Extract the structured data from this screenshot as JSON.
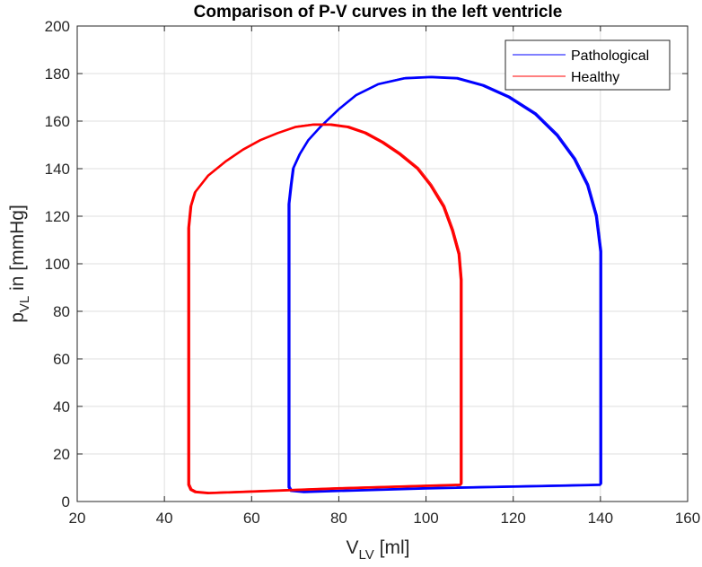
{
  "chart_data": {
    "type": "line",
    "title": "Comparison of P-V curves in the left ventricle",
    "xlabel": {
      "main": "V",
      "sub": "LV",
      "unit": " [ml]"
    },
    "ylabel": {
      "main": "p",
      "sub": "VL",
      "unit": " in [mmHg]"
    },
    "xlim": [
      20,
      160
    ],
    "ylim": [
      0,
      200
    ],
    "xticks": [
      20,
      40,
      60,
      80,
      100,
      120,
      140,
      160
    ],
    "yticks": [
      0,
      20,
      40,
      60,
      80,
      100,
      120,
      140,
      160,
      180,
      200
    ],
    "grid": true,
    "legend_position": "top-right",
    "series": [
      {
        "name": "Pathological",
        "color": "#0000ff",
        "x": [
          140,
          140,
          140,
          139,
          137,
          134,
          130,
          125,
          119,
          113,
          107,
          101,
          95,
          89,
          84,
          80,
          76,
          73,
          71,
          69.5,
          69,
          68.5,
          68.5,
          68.5,
          68.5,
          68.5,
          69,
          72,
          100,
          140
        ],
        "y": [
          7,
          60,
          105,
          120,
          133,
          144,
          154,
          163,
          170,
          175,
          178,
          178.5,
          178,
          175.5,
          171,
          165,
          158,
          152,
          146,
          140,
          133,
          125,
          100,
          60,
          20,
          6,
          4.5,
          4,
          5.5,
          7
        ]
      },
      {
        "name": "Healthy",
        "color": "#ff0000",
        "x": [
          108,
          108,
          108,
          107.5,
          106,
          104,
          101,
          98,
          94,
          90,
          86,
          82,
          78,
          74,
          70,
          66,
          62,
          58,
          54,
          50,
          47,
          46,
          45.5,
          45.5,
          45.5,
          45.5,
          46,
          47,
          50,
          80,
          108
        ],
        "y": [
          7,
          50,
          93,
          104,
          114,
          124,
          133,
          140,
          146,
          151,
          155,
          157.5,
          158.5,
          158.5,
          157.5,
          155,
          152,
          148,
          143,
          137,
          130,
          124,
          115,
          80,
          30,
          7,
          5,
          4,
          3.5,
          5.5,
          7
        ]
      }
    ]
  }
}
